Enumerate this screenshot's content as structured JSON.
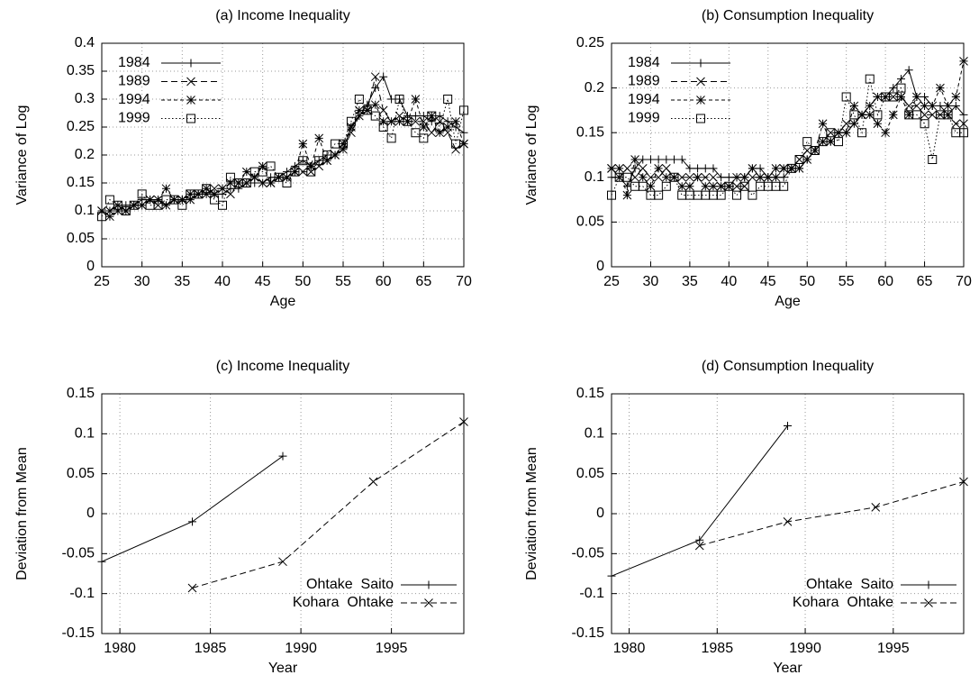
{
  "chart_data": [
    {
      "type": "line",
      "title": "(a) Income Inequality",
      "xlabel": "Age",
      "ylabel": "Variance of Log",
      "x": [
        25,
        26,
        27,
        28,
        29,
        30,
        31,
        32,
        33,
        34,
        35,
        36,
        37,
        38,
        39,
        40,
        41,
        42,
        43,
        44,
        45,
        46,
        47,
        48,
        49,
        50,
        51,
        52,
        53,
        54,
        55,
        56,
        57,
        58,
        59,
        60,
        61,
        62,
        63,
        64,
        65,
        66,
        67,
        68,
        69,
        70
      ],
      "xlim": [
        25,
        70
      ],
      "xticks": [
        25,
        30,
        35,
        40,
        45,
        50,
        55,
        60,
        65,
        70
      ],
      "ylim": [
        0,
        0.4
      ],
      "yticks": [
        0,
        0.05,
        0.1,
        0.15,
        0.2,
        0.25,
        0.3,
        0.35,
        0.4
      ],
      "grid": true,
      "legend": "upper left",
      "series": [
        {
          "name": "1984",
          "color": "#000000",
          "marker": "plus",
          "dash": "solid",
          "values": [
            0.1,
            0.1,
            0.11,
            0.11,
            0.11,
            0.12,
            0.12,
            0.12,
            0.11,
            0.12,
            0.12,
            0.12,
            0.13,
            0.13,
            0.13,
            0.13,
            0.14,
            0.14,
            0.15,
            0.15,
            0.15,
            0.16,
            0.16,
            0.17,
            0.18,
            0.19,
            0.18,
            0.19,
            0.2,
            0.2,
            0.21,
            0.25,
            0.27,
            0.29,
            0.32,
            0.34,
            0.3,
            0.3,
            0.27,
            0.27,
            0.27,
            0.26,
            0.27,
            0.26,
            0.25,
            0.24
          ]
        },
        {
          "name": "1989",
          "color": "#000000",
          "marker": "cross",
          "dash": "dashed",
          "values": [
            0.1,
            0.1,
            0.11,
            0.1,
            0.11,
            0.11,
            0.12,
            0.11,
            0.11,
            0.12,
            0.12,
            0.12,
            0.13,
            0.13,
            0.14,
            0.14,
            0.13,
            0.15,
            0.15,
            0.16,
            0.15,
            0.15,
            0.16,
            0.16,
            0.17,
            0.17,
            0.17,
            0.18,
            0.19,
            0.2,
            0.21,
            0.24,
            0.27,
            0.28,
            0.34,
            0.28,
            0.26,
            0.27,
            0.26,
            0.26,
            0.26,
            0.24,
            0.26,
            0.24,
            0.21,
            0.22
          ]
        },
        {
          "name": "1994",
          "color": "#000000",
          "marker": "star",
          "dash": "short-dashed",
          "values": [
            0.1,
            0.09,
            0.1,
            0.1,
            0.11,
            0.11,
            0.12,
            0.12,
            0.14,
            0.12,
            0.12,
            0.13,
            0.13,
            0.14,
            0.13,
            0.14,
            0.15,
            0.15,
            0.17,
            0.16,
            0.18,
            0.15,
            0.16,
            0.16,
            0.17,
            0.22,
            0.18,
            0.23,
            0.19,
            0.2,
            0.22,
            0.25,
            0.28,
            0.28,
            0.29,
            0.26,
            0.26,
            0.26,
            0.26,
            0.3,
            0.25,
            0.27,
            0.24,
            0.25,
            0.26,
            0.22
          ]
        },
        {
          "name": "1999",
          "color": "#000000",
          "marker": "square",
          "dash": "dotted",
          "values": [
            0.09,
            0.12,
            0.11,
            0.1,
            0.11,
            0.13,
            0.11,
            0.11,
            0.12,
            0.12,
            0.11,
            0.13,
            0.13,
            0.14,
            0.12,
            0.11,
            0.16,
            0.15,
            0.15,
            0.17,
            0.17,
            0.18,
            0.16,
            0.15,
            0.17,
            0.19,
            0.17,
            0.19,
            0.2,
            0.22,
            0.22,
            0.26,
            0.3,
            0.28,
            0.27,
            0.25,
            0.23,
            0.3,
            0.26,
            0.24,
            0.23,
            0.27,
            0.25,
            0.3,
            0.22,
            0.28
          ]
        }
      ]
    },
    {
      "type": "line",
      "title": "(b) Consumption Inequality",
      "xlabel": "Age",
      "ylabel": "Variance of Log",
      "x": [
        25,
        26,
        27,
        28,
        29,
        30,
        31,
        32,
        33,
        34,
        35,
        36,
        37,
        38,
        39,
        40,
        41,
        42,
        43,
        44,
        45,
        46,
        47,
        48,
        49,
        50,
        51,
        52,
        53,
        54,
        55,
        56,
        57,
        58,
        59,
        60,
        61,
        62,
        63,
        64,
        65,
        66,
        67,
        68,
        69,
        70
      ],
      "xlim": [
        25,
        70
      ],
      "xticks": [
        25,
        30,
        35,
        40,
        45,
        50,
        55,
        60,
        65,
        70
      ],
      "ylim": [
        0,
        0.25
      ],
      "yticks": [
        0,
        0.05,
        0.1,
        0.15,
        0.2,
        0.25
      ],
      "grid": true,
      "legend": "upper left",
      "series": [
        {
          "name": "1984",
          "color": "#000000",
          "marker": "plus",
          "dash": "solid",
          "values": [
            0.1,
            0.1,
            0.09,
            0.11,
            0.12,
            0.12,
            0.12,
            0.12,
            0.12,
            0.12,
            0.11,
            0.11,
            0.11,
            0.11,
            0.1,
            0.1,
            0.1,
            0.1,
            0.11,
            0.11,
            0.1,
            0.1,
            0.1,
            0.11,
            0.11,
            0.12,
            0.13,
            0.14,
            0.14,
            0.15,
            0.15,
            0.16,
            0.17,
            0.18,
            0.19,
            0.19,
            0.2,
            0.21,
            0.22,
            0.19,
            0.19,
            0.18,
            0.18,
            0.17,
            0.18,
            0.17
          ]
        },
        {
          "name": "1989",
          "color": "#000000",
          "marker": "cross",
          "dash": "dashed",
          "values": [
            0.11,
            0.1,
            0.11,
            0.1,
            0.11,
            0.1,
            0.1,
            0.11,
            0.1,
            0.1,
            0.1,
            0.1,
            0.1,
            0.1,
            0.09,
            0.09,
            0.09,
            0.09,
            0.1,
            0.1,
            0.1,
            0.1,
            0.11,
            0.11,
            0.12,
            0.13,
            0.13,
            0.14,
            0.15,
            0.15,
            0.16,
            0.16,
            0.17,
            0.18,
            0.19,
            0.19,
            0.19,
            0.19,
            0.18,
            0.18,
            0.17,
            0.17,
            0.17,
            0.17,
            0.16,
            0.16
          ]
        },
        {
          "name": "1994",
          "color": "#000000",
          "marker": "star",
          "dash": "short-dashed",
          "values": [
            0.11,
            0.11,
            0.08,
            0.12,
            0.1,
            0.09,
            0.11,
            0.1,
            0.1,
            0.09,
            0.09,
            0.1,
            0.09,
            0.09,
            0.09,
            0.09,
            0.1,
            0.1,
            0.11,
            0.1,
            0.1,
            0.11,
            0.11,
            0.11,
            0.11,
            0.12,
            0.13,
            0.16,
            0.14,
            0.15,
            0.15,
            0.18,
            0.17,
            0.17,
            0.16,
            0.15,
            0.17,
            0.19,
            0.17,
            0.19,
            0.18,
            0.18,
            0.2,
            0.18,
            0.19,
            0.23
          ]
        },
        {
          "name": "1999",
          "color": "#000000",
          "marker": "square",
          "dash": "dotted",
          "values": [
            0.08,
            0.1,
            0.1,
            0.09,
            0.09,
            0.08,
            0.08,
            0.09,
            0.1,
            0.08,
            0.08,
            0.08,
            0.08,
            0.08,
            0.08,
            0.09,
            0.08,
            0.09,
            0.08,
            0.09,
            0.09,
            0.09,
            0.09,
            0.11,
            0.12,
            0.14,
            0.13,
            0.14,
            0.15,
            0.14,
            0.19,
            0.17,
            0.15,
            0.21,
            0.17,
            0.19,
            0.19,
            0.2,
            0.17,
            0.17,
            0.16,
            0.12,
            0.17,
            0.17,
            0.15,
            0.15
          ]
        }
      ]
    },
    {
      "type": "line",
      "title": "(c) Income Inequality",
      "xlabel": "Year",
      "ylabel": "Deviation from Mean",
      "xlim": [
        1979,
        1999
      ],
      "xticks": [
        1980,
        1985,
        1990,
        1995
      ],
      "ylim": [
        -0.15,
        0.15
      ],
      "yticks": [
        -0.15,
        -0.1,
        -0.05,
        0,
        0.05,
        0.1,
        0.15
      ],
      "grid": true,
      "legend": "lower right",
      "series": [
        {
          "name": "Ohtake  Saito",
          "color": "#000000",
          "marker": "plus",
          "dash": "solid",
          "x": [
            1979,
            1984,
            1989
          ],
          "values": [
            -0.06,
            -0.01,
            0.072
          ]
        },
        {
          "name": "Kohara  Ohtake",
          "color": "#000000",
          "marker": "cross",
          "dash": "dashed",
          "x": [
            1984,
            1989,
            1994,
            1999
          ],
          "values": [
            -0.093,
            -0.06,
            0.04,
            0.115
          ]
        }
      ]
    },
    {
      "type": "line",
      "title": "(d) Consumption Inequality",
      "xlabel": "Year",
      "ylabel": "Deviation from Mean",
      "xlim": [
        1979,
        1999
      ],
      "xticks": [
        1980,
        1985,
        1990,
        1995
      ],
      "ylim": [
        -0.15,
        0.15
      ],
      "yticks": [
        -0.15,
        -0.1,
        -0.05,
        0,
        0.05,
        0.1,
        0.15
      ],
      "grid": true,
      "legend": "lower right",
      "series": [
        {
          "name": "Ohtake  Saito",
          "color": "#000000",
          "marker": "plus",
          "dash": "solid",
          "x": [
            1979,
            1984,
            1989
          ],
          "values": [
            -0.078,
            -0.033,
            0.11
          ]
        },
        {
          "name": "Kohara  Ohtake",
          "color": "#000000",
          "marker": "cross",
          "dash": "dashed",
          "x": [
            1984,
            1989,
            1994,
            1999
          ],
          "values": [
            -0.04,
            -0.01,
            0.008,
            0.04
          ]
        }
      ]
    }
  ]
}
